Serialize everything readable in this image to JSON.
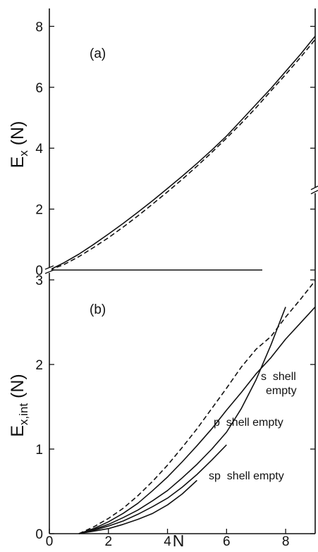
{
  "chart_data": [
    {
      "type": "line",
      "panel_label": "(a)",
      "ylabel_main": "E",
      "ylabel_sub": "x",
      "ylabel_rest": " (N)",
      "xlim": [
        0,
        9
      ],
      "ylim": [
        0,
        8.6
      ],
      "yticks": [
        0,
        2,
        4,
        6,
        8
      ],
      "ytick_labels": [
        "0",
        "2",
        "4",
        "6",
        "8"
      ],
      "xticks": [
        0,
        2,
        4,
        6,
        8
      ],
      "series": [
        {
          "style": "solid",
          "x": [
            0,
            0.5,
            1,
            1.5,
            2,
            2.5,
            3,
            3.5,
            4,
            4.5,
            5,
            5.5,
            6,
            6.5,
            7,
            7.5,
            8,
            8.5,
            9
          ],
          "y": [
            0,
            0.24,
            0.52,
            0.84,
            1.18,
            1.53,
            1.9,
            2.28,
            2.68,
            3.08,
            3.5,
            3.94,
            4.4,
            4.92,
            5.44,
            5.96,
            6.52,
            7.08,
            7.68
          ]
        },
        {
          "style": "dashed",
          "x": [
            0,
            0.5,
            1,
            1.5,
            2,
            2.5,
            3,
            3.5,
            4,
            4.5,
            5,
            5.5,
            6,
            6.5,
            7,
            7.5,
            8,
            8.5,
            9
          ],
          "y": [
            0,
            0.18,
            0.44,
            0.74,
            1.06,
            1.41,
            1.78,
            2.17,
            2.57,
            2.98,
            3.41,
            3.86,
            4.33,
            4.82,
            5.33,
            5.88,
            6.42,
            6.98,
            7.57
          ]
        }
      ]
    },
    {
      "type": "line",
      "panel_label": "(b)",
      "ylabel_main": "E",
      "ylabel_sub": "x,int",
      "ylabel_rest": " (N)",
      "xlabel": "N",
      "xlim": [
        0,
        9
      ],
      "ylim": [
        0,
        3.3
      ],
      "yticks": [
        0,
        1,
        2,
        3
      ],
      "ytick_labels": [
        "0",
        "1",
        "2",
        "3"
      ],
      "xticks": [
        0,
        2,
        4,
        6,
        8
      ],
      "xtick_labels": [
        "0",
        "2",
        "4",
        "6",
        "8"
      ],
      "annotations": [
        {
          "lines": [
            "s  shell",
            "empty"
          ]
        },
        {
          "lines": [
            "p  shell empty"
          ]
        },
        {
          "lines": [
            "sp  shell empty"
          ]
        }
      ],
      "series": [
        {
          "style": "dashed",
          "x": [
            1,
            1.5,
            2,
            2.5,
            3,
            3.5,
            4,
            4.5,
            5,
            5.5,
            6,
            6.5,
            7,
            7.5,
            8,
            8.5,
            9
          ],
          "y": [
            0,
            0.08,
            0.18,
            0.3,
            0.45,
            0.62,
            0.81,
            1.02,
            1.24,
            1.48,
            1.72,
            1.97,
            2.18,
            2.33,
            2.56,
            2.77,
            2.99
          ]
        },
        {
          "style": "solid",
          "x": [
            1,
            1.5,
            2,
            2.5,
            3,
            3.5,
            4,
            4.5,
            5,
            5.5,
            6,
            6.5,
            7,
            7.5,
            8,
            8.5,
            9
          ],
          "y": [
            0,
            0.06,
            0.14,
            0.24,
            0.36,
            0.51,
            0.67,
            0.85,
            1.04,
            1.24,
            1.46,
            1.67,
            1.89,
            2.08,
            2.3,
            2.49,
            2.68
          ]
        },
        {
          "style": "solid",
          "x": [
            1,
            1.5,
            2,
            2.5,
            3,
            3.5,
            4,
            4.5,
            5,
            5.5,
            6,
            6.5,
            7,
            7.5,
            8
          ],
          "y": [
            0,
            0.05,
            0.11,
            0.19,
            0.28,
            0.39,
            0.51,
            0.66,
            0.82,
            1.0,
            1.2,
            1.48,
            1.82,
            2.23,
            2.68
          ]
        },
        {
          "style": "solid",
          "x": [
            1,
            1.5,
            2,
            2.5,
            3,
            3.5,
            4,
            4.5,
            5,
            5.5,
            6
          ],
          "y": [
            0,
            0.04,
            0.09,
            0.15,
            0.23,
            0.32,
            0.42,
            0.55,
            0.7,
            0.87,
            1.05
          ]
        },
        {
          "style": "solid",
          "x": [
            1,
            1.5,
            2,
            2.5,
            3,
            3.5,
            4,
            4.5,
            5
          ],
          "y": [
            0,
            0.03,
            0.06,
            0.11,
            0.17,
            0.24,
            0.34,
            0.47,
            0.63
          ]
        }
      ]
    }
  ]
}
